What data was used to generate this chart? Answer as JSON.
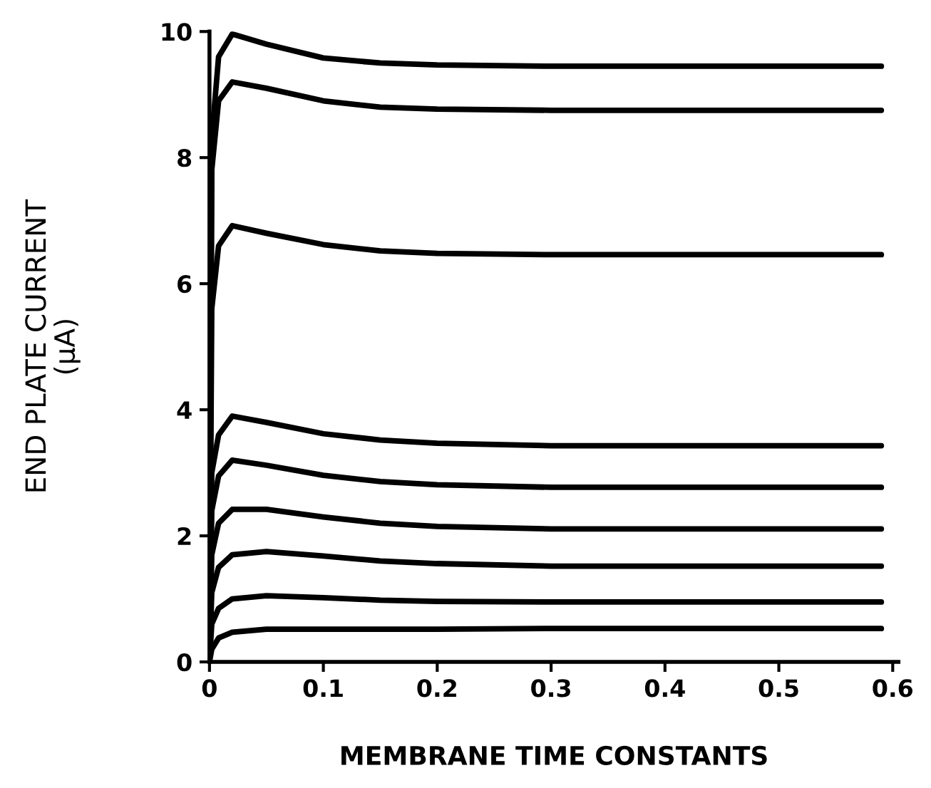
{
  "chart_data": {
    "type": "line",
    "xlabel": "MEMBRANE TIME CONSTANTS",
    "ylabel": "END PLATE CURRENT\n(μA)",
    "x": [
      0,
      0.002,
      0.008,
      0.02,
      0.05,
      0.1,
      0.15,
      0.2,
      0.3,
      0.4,
      0.5,
      0.59
    ],
    "series": [
      {
        "color": "#000000",
        "values": [
          0,
          8.3,
          9.6,
          9.96,
          9.8,
          9.58,
          9.5,
          9.47,
          9.45,
          9.45,
          9.45,
          9.45
        ]
      },
      {
        "color": "#000000",
        "values": [
          0,
          7.8,
          8.9,
          9.2,
          9.1,
          8.9,
          8.8,
          8.77,
          8.75,
          8.75,
          8.75,
          8.75
        ]
      },
      {
        "color": "#000000",
        "values": [
          0,
          5.6,
          6.6,
          6.92,
          6.8,
          6.62,
          6.52,
          6.48,
          6.46,
          6.46,
          6.46,
          6.46
        ]
      },
      {
        "color": "#000000",
        "values": [
          0,
          3.0,
          3.6,
          3.9,
          3.8,
          3.62,
          3.52,
          3.47,
          3.43,
          3.43,
          3.43,
          3.43
        ]
      },
      {
        "color": "#000000",
        "values": [
          0,
          2.4,
          2.95,
          3.2,
          3.12,
          2.96,
          2.86,
          2.81,
          2.77,
          2.77,
          2.77,
          2.77
        ]
      },
      {
        "color": "#000000",
        "values": [
          0,
          1.7,
          2.2,
          2.42,
          2.42,
          2.3,
          2.2,
          2.15,
          2.11,
          2.11,
          2.11,
          2.11
        ]
      },
      {
        "color": "#000000",
        "values": [
          0,
          1.1,
          1.5,
          1.7,
          1.75,
          1.68,
          1.6,
          1.56,
          1.52,
          1.52,
          1.52,
          1.52
        ]
      },
      {
        "color": "#000000",
        "values": [
          0,
          0.6,
          0.85,
          1.0,
          1.05,
          1.02,
          0.98,
          0.96,
          0.95,
          0.95,
          0.95,
          0.95
        ]
      },
      {
        "color": "#000000",
        "values": [
          0,
          0.2,
          0.38,
          0.47,
          0.52,
          0.52,
          0.52,
          0.52,
          0.53,
          0.53,
          0.53,
          0.53
        ]
      }
    ],
    "xlim": [
      0,
      0.605
    ],
    "ylim": [
      0,
      10
    ],
    "xticks": [
      0,
      0.1,
      0.2,
      0.3,
      0.4,
      0.5,
      0.6
    ],
    "yticks": [
      0,
      2,
      4,
      6,
      8,
      10
    ],
    "grid": false,
    "legend": false,
    "marker": "none",
    "line_style": "solid"
  }
}
